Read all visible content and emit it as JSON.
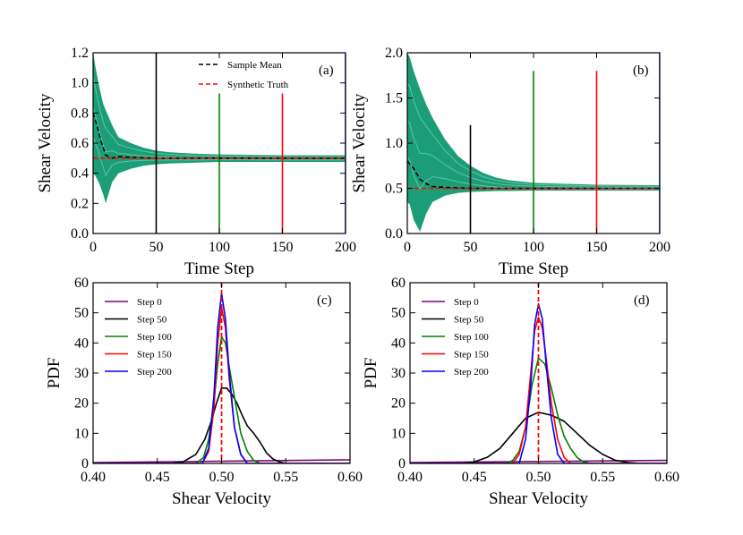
{
  "chart_data": [
    {
      "panel": "(a)",
      "type": "line",
      "xlabel": "Time Step",
      "ylabel": "Shear Velocity",
      "xlim": [
        0,
        200
      ],
      "ylim": [
        0,
        1.2
      ],
      "xticks": [
        "0",
        "50",
        "100",
        "150",
        "200"
      ],
      "yticks": [
        "0.0",
        "0.2",
        "0.4",
        "0.6",
        "0.8",
        "1.0",
        "1.2"
      ],
      "ensemble_color": "#1b9e77",
      "ensemble_band": {
        "x": [
          0,
          2,
          5,
          8,
          10,
          15,
          20,
          30,
          40,
          50,
          60,
          80,
          100,
          150,
          200
        ],
        "upper": [
          1.2,
          1.1,
          0.97,
          0.86,
          0.82,
          0.72,
          0.64,
          0.6,
          0.57,
          0.55,
          0.54,
          0.53,
          0.525,
          0.52,
          0.52
        ],
        "lower": [
          0.4,
          0.38,
          0.33,
          0.26,
          0.2,
          0.34,
          0.4,
          0.43,
          0.45,
          0.46,
          0.465,
          0.47,
          0.475,
          0.475,
          0.475
        ]
      },
      "sample_mean": {
        "name": "Sample Mean",
        "color": "#000000",
        "x": [
          0,
          3,
          6,
          10,
          15,
          20,
          30,
          50,
          200
        ],
        "y": [
          0.8,
          0.72,
          0.62,
          0.52,
          0.5,
          0.51,
          0.505,
          0.5,
          0.5
        ]
      },
      "truth": {
        "name": "Synthetic Truth",
        "color": "#ff0000",
        "value": 0.5
      },
      "markers": [
        {
          "x": 50,
          "color": "#000000",
          "ytop": 1.2
        },
        {
          "x": 100,
          "color": "#008000",
          "ytop": 0.93
        },
        {
          "x": 150,
          "color": "#ff0000",
          "ytop": 0.93
        },
        {
          "x": 200,
          "color": "#0000ff",
          "ytop": 1.2
        }
      ],
      "legend": [
        "Sample Mean",
        "Synthetic Truth"
      ],
      "legend_position": "top-center"
    },
    {
      "panel": "(b)",
      "type": "line",
      "xlabel": "Time Step",
      "ylabel": "Shear Velocity",
      "xlim": [
        0,
        200
      ],
      "ylim": [
        0,
        2.0
      ],
      "xticks": [
        "0",
        "50",
        "100",
        "150",
        "200"
      ],
      "yticks": [
        "0.0",
        "0.5",
        "1.0",
        "1.5",
        "2.0"
      ],
      "ensemble_color": "#1b9e77",
      "ensemble_band": {
        "x": [
          0,
          2,
          5,
          10,
          15,
          20,
          30,
          40,
          50,
          60,
          70,
          80,
          100,
          150,
          200
        ],
        "upper": [
          2.0,
          1.95,
          1.8,
          1.6,
          1.43,
          1.28,
          1.04,
          0.86,
          0.75,
          0.67,
          0.62,
          0.59,
          0.56,
          0.54,
          0.535
        ],
        "lower": [
          0.35,
          0.32,
          0.15,
          0.02,
          0.22,
          0.35,
          0.42,
          0.45,
          0.46,
          0.465,
          0.47,
          0.47,
          0.475,
          0.475,
          0.475
        ]
      },
      "sample_mean": {
        "name": "Sample Mean",
        "color": "#000000",
        "x": [
          0,
          5,
          10,
          15,
          20,
          30,
          50,
          200
        ],
        "y": [
          0.8,
          0.72,
          0.6,
          0.55,
          0.52,
          0.51,
          0.5,
          0.5
        ]
      },
      "truth": {
        "name": "Synthetic Truth",
        "color": "#ff0000",
        "value": 0.5
      },
      "markers": [
        {
          "x": 50,
          "color": "#000000",
          "ytop": 1.2
        },
        {
          "x": 100,
          "color": "#008000",
          "ytop": 1.8
        },
        {
          "x": 150,
          "color": "#ff0000",
          "ytop": 1.8
        },
        {
          "x": 200,
          "color": "#0000ff",
          "ytop": 2.0
        }
      ],
      "legend": [],
      "legend_position": "none"
    },
    {
      "panel": "(c)",
      "type": "line",
      "xlabel": "Shear Velocity",
      "ylabel": "PDF",
      "xlim": [
        0.4,
        0.6
      ],
      "ylim": [
        0,
        60
      ],
      "xticks": [
        "0.40",
        "0.45",
        "0.50",
        "0.55",
        "0.60"
      ],
      "yticks": [
        "0",
        "10",
        "20",
        "30",
        "40",
        "50",
        "60"
      ],
      "truth": {
        "name": "Synthetic Truth",
        "color": "#ff0000",
        "value": 0.5
      },
      "legend_position": "top-left",
      "series": [
        {
          "name": "Step 0",
          "color": "#800080",
          "x": [
            0.4,
            0.6
          ],
          "y": [
            0.3,
            1.2
          ]
        },
        {
          "name": "Step 50",
          "color": "#000000",
          "x": [
            0.4,
            0.46,
            0.47,
            0.48,
            0.487,
            0.492,
            0.496,
            0.5,
            0.504,
            0.508,
            0.512,
            0.516,
            0.52,
            0.525,
            0.53,
            0.535,
            0.54,
            0.545,
            0.55,
            0.6
          ],
          "y": [
            0,
            0,
            0.5,
            3,
            8,
            14,
            20,
            25,
            25,
            23,
            20,
            16,
            12.5,
            10,
            7,
            3.5,
            1.5,
            0.5,
            0,
            0
          ]
        },
        {
          "name": "Step 100",
          "color": "#008000",
          "x": [
            0.4,
            0.48,
            0.486,
            0.49,
            0.494,
            0.497,
            0.5,
            0.503,
            0.506,
            0.51,
            0.515,
            0.52,
            0.525,
            0.53,
            0.6
          ],
          "y": [
            0,
            0,
            2,
            8,
            20,
            33,
            42,
            40,
            32,
            22,
            10,
            4,
            1,
            0,
            0
          ]
        },
        {
          "name": "Step 150",
          "color": "#ff0000",
          "x": [
            0.4,
            0.485,
            0.49,
            0.494,
            0.497,
            0.5,
            0.503,
            0.506,
            0.51,
            0.515,
            0.52,
            0.6
          ],
          "y": [
            0,
            0,
            4,
            18,
            40,
            52,
            45,
            28,
            12,
            3,
            0,
            0
          ]
        },
        {
          "name": "Step 200",
          "color": "#0000ff",
          "x": [
            0.4,
            0.485,
            0.49,
            0.494,
            0.497,
            0.5,
            0.503,
            0.506,
            0.51,
            0.515,
            0.52,
            0.6
          ],
          "y": [
            0,
            0,
            5,
            22,
            45,
            56.5,
            48,
            30,
            12,
            3,
            0,
            0
          ]
        }
      ]
    },
    {
      "panel": "(d)",
      "type": "line",
      "xlabel": "Shear Velocity",
      "ylabel": "PDF",
      "xlim": [
        0.4,
        0.6
      ],
      "ylim": [
        0,
        60
      ],
      "xticks": [
        "0.40",
        "0.45",
        "0.50",
        "0.55",
        "0.60"
      ],
      "yticks": [
        "0",
        "10",
        "20",
        "30",
        "40",
        "50",
        "60"
      ],
      "truth": {
        "name": "Synthetic Truth",
        "color": "#ff0000",
        "value": 0.5
      },
      "legend_position": "top-left",
      "series": [
        {
          "name": "Step 0",
          "color": "#800080",
          "x": [
            0.4,
            0.6
          ],
          "y": [
            0.3,
            1.0
          ]
        },
        {
          "name": "Step 50",
          "color": "#000000",
          "x": [
            0.4,
            0.44,
            0.45,
            0.46,
            0.47,
            0.48,
            0.49,
            0.5,
            0.51,
            0.52,
            0.53,
            0.54,
            0.55,
            0.56,
            0.57,
            0.58,
            0.6
          ],
          "y": [
            0,
            0,
            0.5,
            2,
            5,
            10,
            15,
            17,
            16,
            14,
            10,
            6,
            3,
            1,
            0.3,
            0,
            0
          ]
        },
        {
          "name": "Step 100",
          "color": "#008000",
          "x": [
            0.4,
            0.475,
            0.48,
            0.485,
            0.49,
            0.495,
            0.5,
            0.505,
            0.51,
            0.515,
            0.52,
            0.525,
            0.53,
            0.535,
            0.54,
            0.6
          ],
          "y": [
            0,
            0,
            1,
            4,
            12,
            26,
            35,
            33,
            25,
            16,
            9,
            5,
            2,
            0.5,
            0,
            0
          ]
        },
        {
          "name": "Step 150",
          "color": "#ff0000",
          "x": [
            0.4,
            0.48,
            0.485,
            0.49,
            0.494,
            0.497,
            0.5,
            0.503,
            0.506,
            0.51,
            0.515,
            0.52,
            0.525,
            0.6
          ],
          "y": [
            0,
            0,
            3,
            12,
            30,
            44,
            48.5,
            45,
            35,
            20,
            8,
            2,
            0,
            0
          ]
        },
        {
          "name": "Step 200",
          "color": "#0000ff",
          "x": [
            0.4,
            0.485,
            0.49,
            0.494,
            0.497,
            0.5,
            0.503,
            0.506,
            0.51,
            0.515,
            0.52,
            0.6
          ],
          "y": [
            0,
            0,
            8,
            26,
            46,
            53,
            48,
            33,
            15,
            3,
            0,
            0
          ]
        }
      ]
    }
  ]
}
